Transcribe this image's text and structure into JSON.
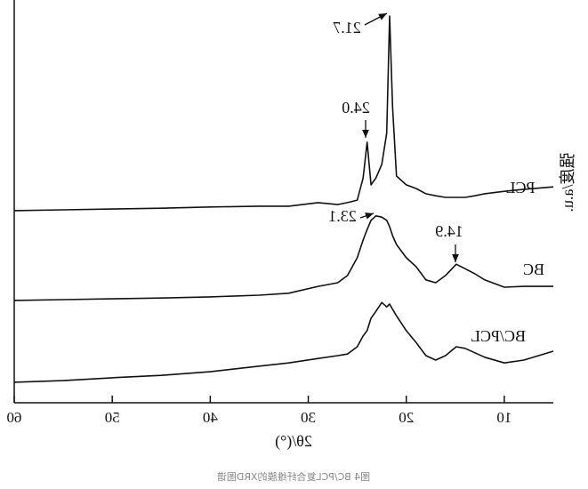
{
  "chart_data": {
    "type": "line",
    "x_label": "2θ/(°)",
    "y_label": "强度/a.u.",
    "caption": "图4 BC/PCL复合纤维膜的XRD图谱",
    "mirrored": true,
    "x": [
      5,
      8,
      10,
      12,
      13,
      14,
      14.9,
      16,
      17,
      18,
      19,
      20,
      21,
      21.4,
      21.7,
      22,
      22.5,
      23.1,
      23.6,
      24,
      24.4,
      25,
      26,
      27,
      29,
      32,
      35,
      40,
      45,
      50,
      55,
      60
    ],
    "series": [
      {
        "name": "PCL",
        "color": "#111111",
        "values": [
          53.6,
          53.0,
          52.5,
          51.9,
          51.4,
          51.0,
          51.0,
          51.0,
          51.4,
          51.9,
          53.2,
          54.1,
          56.3,
          73.5,
          96.0,
          66.9,
          59.2,
          55.8,
          54.1,
          64.7,
          55.8,
          50.3,
          49.7,
          49.2,
          49.7,
          48.8,
          48.8,
          48.6,
          48.3,
          48.1,
          47.9,
          47.7
        ]
      },
      {
        "name": "BC",
        "color": "#111111",
        "values": [
          28.9,
          28.9,
          28.7,
          30.5,
          32.0,
          33.3,
          34.4,
          31.6,
          29.8,
          30.5,
          33.8,
          36.0,
          39.3,
          41.5,
          43.7,
          45.3,
          46.1,
          46.4,
          45.3,
          43.0,
          40.4,
          36.0,
          31.6,
          29.8,
          28.9,
          27.2,
          26.7,
          26.3,
          26.0,
          25.8,
          25.6,
          25.4
        ]
      },
      {
        "name": "BC/PCL",
        "color": "#111111",
        "values": [
          12.8,
          10.6,
          9.9,
          11.3,
          12.4,
          13.5,
          13.9,
          11.7,
          10.6,
          11.7,
          15.0,
          17.9,
          21.6,
          23.2,
          24.5,
          23.8,
          24.9,
          22.7,
          21.0,
          17.9,
          16.6,
          13.9,
          12.1,
          11.7,
          11.0,
          9.9,
          9.1,
          7.7,
          6.8,
          6.2,
          5.5,
          5.1
        ]
      }
    ],
    "annotations": [
      {
        "text": "21.7"
      },
      {
        "text": "24.0"
      },
      {
        "text": "23.1"
      },
      {
        "text": "14.9"
      }
    ],
    "xlim": [
      5,
      60
    ],
    "xticks": [
      10,
      20,
      30,
      40,
      50,
      60
    ],
    "ylim": [
      0,
      100
    ]
  }
}
